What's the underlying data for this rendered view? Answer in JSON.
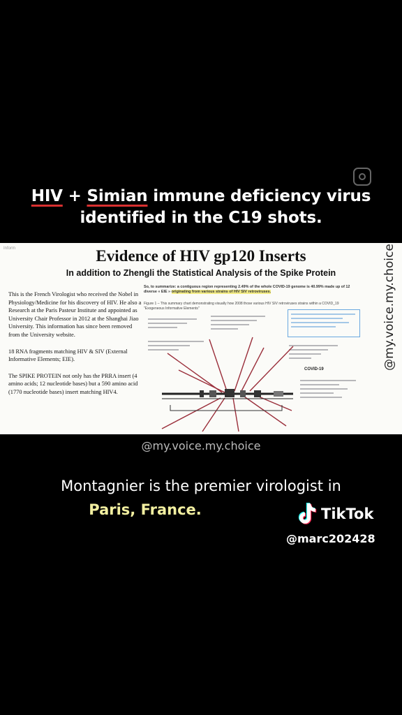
{
  "headline": {
    "part1": "HIV",
    "part2": " + ",
    "part3": "Simian",
    "part4": " immune deficiency virus",
    "line2": "identified in the C19 shots."
  },
  "slide": {
    "tag": "Inform",
    "title": "Evidence of HIV gp120 Inserts",
    "subtitle": "In addition to Zhengli the Statistical Analysis of the Spike Protein",
    "para1": "This is the French Virologist who received the Nobel in Physiology/Medicine for his discovery of HIV. He also a Research at the Paris Pasteur Institute and appointed as University Chair Professor in 2012 at the Shanghai Jiao University. This information has since been removed from the University website.",
    "para2": "18 RNA fragments matching HIV & SIV (External Informative Elements; EIE).",
    "para3": "The SPIKE PROTEIN not only has the PRRA insert (4 amino acids; 12 nucleotide bases) but a 590 amino acid (1770 nucleotide bases) insert matching HIV4.",
    "summary_a": "So, to summarize: a contiguous region representing 2.49% of the whole COVID-19 genome is 40.99% made up of 12 diverse « EIE »",
    "summary_b": "originating from various strains of HIV SIV retroviruses.",
    "figure_caption": "Figure 1 – This summary chart demonstrating visually how 2008 those various HIV SIV retroviruses strains within a COVID_19 \"Exogeneous Informative Elements\"",
    "diagram_label_covid": "COVID-19"
  },
  "watermark": {
    "side": "@my.voice.my.choice",
    "bottom": "@my.voice.my.choice"
  },
  "caption": {
    "line1": "Montagnier is the premier virologist in",
    "line2": "Paris, France."
  },
  "tiktok": {
    "brand": "TikTok",
    "username": "@marc202428"
  },
  "colors": {
    "underline": "#d83030",
    "caption_highlight": "#f2efa0",
    "diagram_arrow": "#9a2e3a",
    "box_blue": "#6aa8e0"
  }
}
